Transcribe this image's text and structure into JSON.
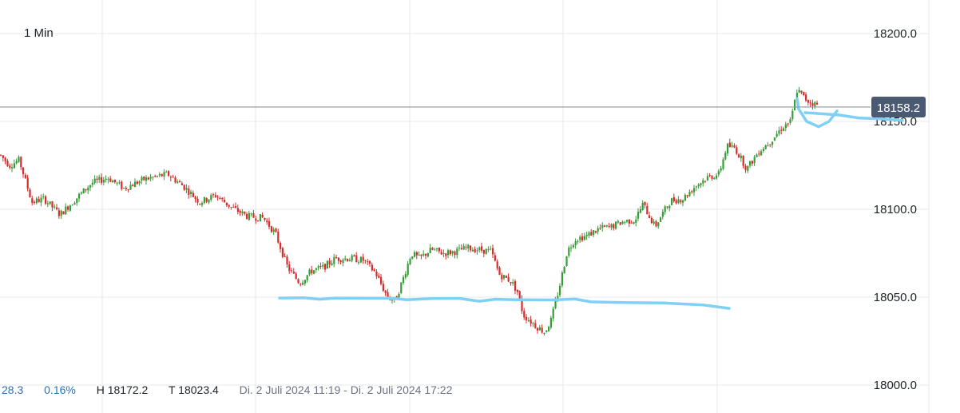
{
  "interval": "1 Min",
  "stats": {
    "change": "28.3",
    "change_pct": "0.16%",
    "high": "H 18172.2",
    "low": "T 18023.4",
    "range": "Di. 2 Juli 2024 11:19 - Di. 2 Juli 2024 17:22"
  },
  "colors": {
    "up": "#3a9b3a",
    "down": "#d62c2c",
    "grid": "#e6e8eb",
    "price_line": "#8a96a3",
    "price_tag": "#4a5a72",
    "drawing": "#7fd0f5"
  },
  "chart_data": {
    "type": "candlestick",
    "y_ticks": [
      "18200.0",
      "18150.0",
      "18100.0",
      "18050.0",
      "18000.0"
    ],
    "ylim": [
      17996,
      18219
    ],
    "last_price": 18158.2,
    "last_price_label": "18158.2",
    "grid": true,
    "anchors": [
      [
        0,
        18131
      ],
      [
        12,
        18125
      ],
      [
        24,
        18128
      ],
      [
        40,
        18104
      ],
      [
        55,
        18106
      ],
      [
        75,
        18097
      ],
      [
        95,
        18106
      ],
      [
        115,
        18115
      ],
      [
        135,
        18118
      ],
      [
        155,
        18112
      ],
      [
        180,
        18117
      ],
      [
        210,
        18120
      ],
      [
        230,
        18113
      ],
      [
        250,
        18104
      ],
      [
        270,
        18108
      ],
      [
        290,
        18101
      ],
      [
        310,
        18096
      ],
      [
        330,
        18095
      ],
      [
        345,
        18086
      ],
      [
        360,
        18067
      ],
      [
        375,
        18058
      ],
      [
        390,
        18065
      ],
      [
        405,
        18067
      ],
      [
        420,
        18072
      ],
      [
        440,
        18072
      ],
      [
        455,
        18071
      ],
      [
        470,
        18064
      ],
      [
        485,
        18050
      ],
      [
        495,
        18048
      ],
      [
        505,
        18061
      ],
      [
        515,
        18075
      ],
      [
        525,
        18072
      ],
      [
        540,
        18077
      ],
      [
        555,
        18075
      ],
      [
        570,
        18076
      ],
      [
        585,
        18078
      ],
      [
        600,
        18077
      ],
      [
        615,
        18076
      ],
      [
        625,
        18063
      ],
      [
        640,
        18059
      ],
      [
        648,
        18053
      ],
      [
        655,
        18040
      ],
      [
        670,
        18034
      ],
      [
        682,
        18030
      ],
      [
        690,
        18037
      ],
      [
        700,
        18055
      ],
      [
        710,
        18076
      ],
      [
        720,
        18083
      ],
      [
        735,
        18085
      ],
      [
        750,
        18089
      ],
      [
        765,
        18090
      ],
      [
        780,
        18093
      ],
      [
        795,
        18094
      ],
      [
        805,
        18103
      ],
      [
        820,
        18090
      ],
      [
        830,
        18098
      ],
      [
        840,
        18105
      ],
      [
        855,
        18106
      ],
      [
        870,
        18113
      ],
      [
        885,
        18118
      ],
      [
        900,
        18120
      ],
      [
        910,
        18136
      ],
      [
        920,
        18135
      ],
      [
        935,
        18123
      ],
      [
        950,
        18133
      ],
      [
        965,
        18139
      ],
      [
        980,
        18147
      ],
      [
        990,
        18150
      ],
      [
        998,
        18168
      ],
      [
        1010,
        18162
      ],
      [
        1025,
        18159
      ]
    ],
    "drawings": [
      {
        "name": "support-line",
        "points": [
          [
            350,
            18049.5
          ],
          [
            380,
            18049.7
          ],
          [
            400,
            18048.8
          ],
          [
            420,
            18049.5
          ],
          [
            460,
            18049.4
          ],
          [
            490,
            18049.4
          ],
          [
            510,
            18048.5
          ],
          [
            540,
            18049.2
          ],
          [
            575,
            18049.3
          ],
          [
            600,
            18047.7
          ],
          [
            620,
            18048.8
          ],
          [
            650,
            18048.5
          ],
          [
            690,
            18048.4
          ],
          [
            720,
            18048.9
          ],
          [
            740,
            18047.3
          ],
          [
            780,
            18046.9
          ],
          [
            830,
            18046.7
          ],
          [
            880,
            18045.6
          ],
          [
            913,
            18043.6
          ]
        ]
      },
      {
        "name": "resistance-line",
        "points": [
          [
            1008,
            18155
          ],
          [
            1030,
            18154.3
          ],
          [
            1050,
            18153.7
          ],
          [
            1075,
            18152
          ],
          [
            1105,
            18151.4
          ],
          [
            1130,
            18150.6
          ]
        ]
      },
      {
        "name": "loop",
        "points": [
          [
            998,
            18163
          ],
          [
            1000,
            18157
          ],
          [
            1010,
            18150
          ],
          [
            1025,
            18147
          ],
          [
            1038,
            18150
          ],
          [
            1048,
            18156
          ]
        ]
      }
    ]
  }
}
